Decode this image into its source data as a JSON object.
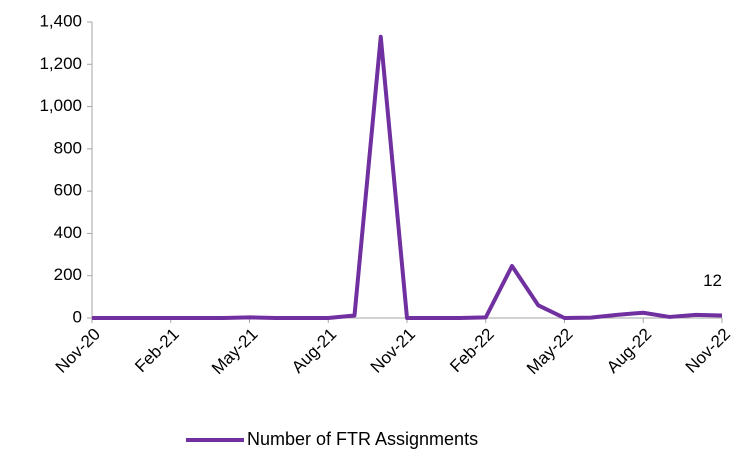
{
  "chart_data": {
    "type": "line",
    "categories": [
      "Nov-20",
      null,
      null,
      "Feb-21",
      null,
      null,
      "May-21",
      null,
      null,
      "Aug-21",
      null,
      null,
      "Nov-21",
      null,
      null,
      "Feb-22",
      null,
      null,
      "May-22",
      null,
      null,
      "Aug-22",
      null,
      null,
      "Nov-22"
    ],
    "series": [
      {
        "name": "Number of FTR Assignments",
        "color": "#7030a0",
        "values": [
          0,
          0,
          0,
          0,
          0,
          0,
          3,
          0,
          0,
          0,
          12,
          1330,
          0,
          0,
          0,
          3,
          246,
          60,
          0,
          2,
          15,
          25,
          5,
          15,
          12
        ],
        "value_labels": [
          null,
          null,
          null,
          null,
          null,
          null,
          null,
          null,
          null,
          null,
          null,
          null,
          null,
          null,
          null,
          null,
          null,
          null,
          null,
          null,
          null,
          null,
          null,
          null,
          "12"
        ]
      }
    ],
    "ylim": [
      0,
      1400
    ],
    "yticks": [
      0,
      200,
      400,
      600,
      800,
      {
        "value": 1000,
        "label": "1,000"
      },
      {
        "value": 1200,
        "label": "1,200"
      },
      {
        "value": 1400,
        "label": "1,400"
      }
    ],
    "grid": false,
    "legend": "bottom"
  }
}
